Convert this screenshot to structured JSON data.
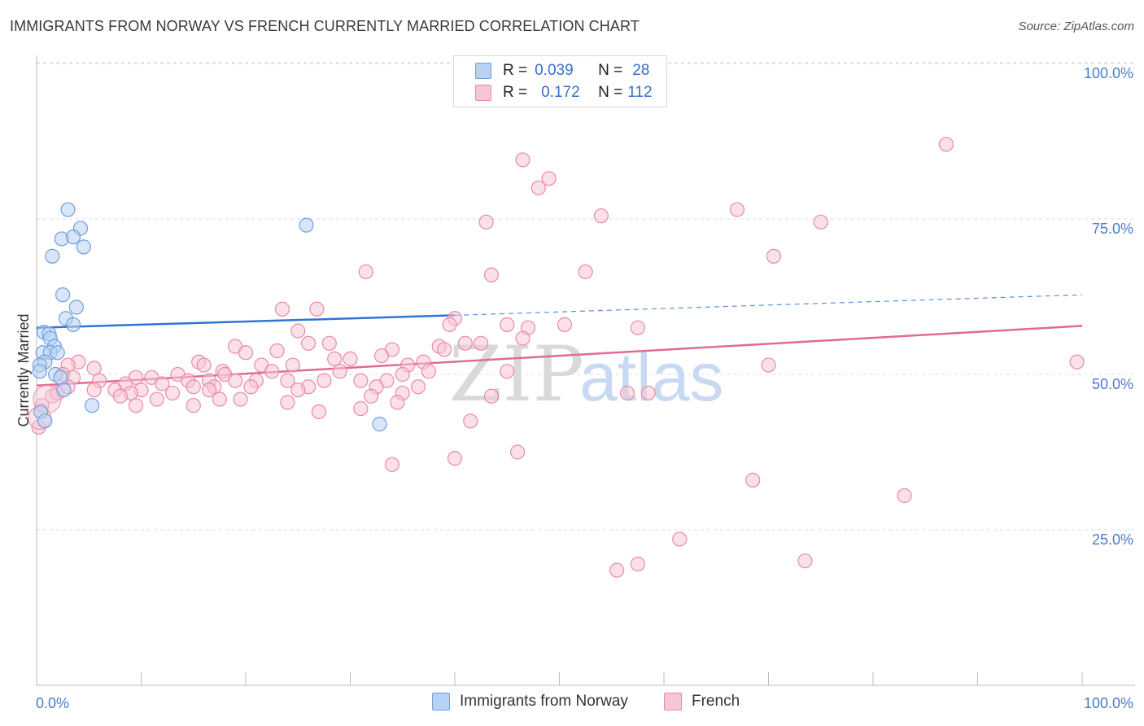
{
  "title": "IMMIGRANTS FROM NORWAY VS FRENCH CURRENTLY MARRIED CORRELATION CHART",
  "source": "Source: ZipAtlas.com",
  "watermark": {
    "zip": "ZIP",
    "atlas": "atlas"
  },
  "legend": {
    "series1": {
      "r_label": "R =",
      "r_value": "0.039",
      "n_label": "N =",
      "n_value": "28"
    },
    "series2": {
      "r_label": "R =",
      "r_value": "0.172",
      "n_label": "N =",
      "n_value": "112"
    }
  },
  "bottom_legend": {
    "series1": "Immigrants from Norway",
    "series2": "French"
  },
  "colors": {
    "blue": "#6f9fe0",
    "blue_fill": "#b9d1f3",
    "blue_line": "#2f75d6",
    "pink": "#e98aa8",
    "pink_fill": "#f7c6d6",
    "pink_line": "#e06a96",
    "axis_text": "#4a7cc9"
  },
  "chart_data": {
    "type": "scatter",
    "title": "IMMIGRANTS FROM NORWAY VS FRENCH CURRENTLY MARRIED CORRELATION CHART",
    "xlabel": "",
    "ylabel": "Currently Married",
    "xlim": [
      0,
      100
    ],
    "ylim": [
      0,
      105
    ],
    "x_tick_labels": {
      "left": "0.0%",
      "right": "100.0%"
    },
    "y_ticks": [
      {
        "value": 25,
        "label": "25.0%"
      },
      {
        "value": 50,
        "label": "50.0%"
      },
      {
        "value": 75,
        "label": "75.0%"
      },
      {
        "value": 100,
        "label": "100.0%"
      }
    ],
    "series": [
      {
        "name": "Immigrants from Norway",
        "color": "blue",
        "r": 0.039,
        "n": 28,
        "trend": {
          "x0": 0,
          "y0": 57.5,
          "x1": 40,
          "y1": 59.5,
          "x_dash_end": 100,
          "y_dash_end": 62.8
        },
        "points": [
          [
            3.0,
            76.5
          ],
          [
            4.2,
            73.5
          ],
          [
            2.4,
            71.8
          ],
          [
            3.5,
            72.1
          ],
          [
            4.5,
            70.5
          ],
          [
            1.5,
            69.0
          ],
          [
            2.5,
            62.8
          ],
          [
            3.8,
            60.8
          ],
          [
            2.8,
            59.0
          ],
          [
            3.5,
            58.0
          ],
          [
            0.7,
            56.8
          ],
          [
            1.2,
            56.5
          ],
          [
            1.3,
            55.8
          ],
          [
            1.7,
            54.5
          ],
          [
            0.6,
            53.5
          ],
          [
            1.3,
            53.5
          ],
          [
            2.0,
            53.5
          ],
          [
            0.8,
            52.0
          ],
          [
            0.3,
            51.5
          ],
          [
            1.8,
            50.0
          ],
          [
            2.3,
            49.5
          ],
          [
            2.6,
            47.5
          ],
          [
            5.3,
            45.0
          ],
          [
            0.4,
            44.0
          ],
          [
            0.8,
            42.5
          ],
          [
            25.8,
            74.0
          ],
          [
            32.8,
            42.0
          ],
          [
            0.3,
            50.5
          ]
        ]
      },
      {
        "name": "French",
        "color": "pink",
        "r": 0.172,
        "n": 112,
        "trend": {
          "x0": 0,
          "y0": 48.2,
          "x1": 100,
          "y1": 57.8
        },
        "points": [
          [
            87.0,
            87.0
          ],
          [
            46.5,
            84.5
          ],
          [
            49.0,
            81.5
          ],
          [
            48.0,
            80.0
          ],
          [
            67.0,
            76.5
          ],
          [
            54.0,
            75.5
          ],
          [
            43.0,
            74.5
          ],
          [
            75.0,
            74.5
          ],
          [
            70.5,
            69.0
          ],
          [
            52.5,
            66.5
          ],
          [
            31.5,
            66.5
          ],
          [
            43.5,
            66.0
          ],
          [
            23.5,
            60.5
          ],
          [
            26.8,
            60.5
          ],
          [
            40.0,
            59.0
          ],
          [
            39.5,
            58.0
          ],
          [
            45.0,
            58.0
          ],
          [
            50.5,
            58.0
          ],
          [
            47.0,
            57.5
          ],
          [
            57.5,
            57.5
          ],
          [
            25.0,
            57.0
          ],
          [
            46.5,
            55.8
          ],
          [
            41.0,
            55.0
          ],
          [
            42.5,
            55.0
          ],
          [
            26.0,
            55.0
          ],
          [
            28.0,
            55.0
          ],
          [
            19.0,
            54.5
          ],
          [
            38.5,
            54.5
          ],
          [
            34.0,
            54.0
          ],
          [
            39.0,
            54.0
          ],
          [
            23.0,
            53.8
          ],
          [
            20.0,
            53.5
          ],
          [
            33.0,
            53.0
          ],
          [
            30.0,
            52.5
          ],
          [
            28.5,
            52.5
          ],
          [
            15.5,
            52.0
          ],
          [
            37.0,
            52.0
          ],
          [
            16.0,
            51.5
          ],
          [
            21.5,
            51.5
          ],
          [
            24.5,
            51.5
          ],
          [
            35.5,
            51.5
          ],
          [
            4.0,
            52.0
          ],
          [
            5.5,
            51.0
          ],
          [
            3.0,
            51.5
          ],
          [
            70.0,
            51.5
          ],
          [
            99.5,
            52.0
          ],
          [
            17.8,
            50.5
          ],
          [
            22.5,
            50.5
          ],
          [
            29.0,
            50.5
          ],
          [
            35.0,
            50.0
          ],
          [
            37.5,
            50.5
          ],
          [
            45.0,
            50.5
          ],
          [
            13.5,
            50.0
          ],
          [
            18.0,
            50.0
          ],
          [
            2.5,
            50.0
          ],
          [
            3.5,
            49.5
          ],
          [
            9.5,
            49.5
          ],
          [
            11.0,
            49.5
          ],
          [
            14.5,
            49.0
          ],
          [
            16.5,
            49.0
          ],
          [
            19.0,
            49.0
          ],
          [
            21.0,
            49.0
          ],
          [
            24.0,
            49.0
          ],
          [
            27.5,
            49.0
          ],
          [
            31.0,
            49.0
          ],
          [
            33.5,
            49.0
          ],
          [
            6.0,
            49.0
          ],
          [
            8.5,
            48.5
          ],
          [
            12.0,
            48.5
          ],
          [
            15.0,
            48.0
          ],
          [
            17.0,
            48.0
          ],
          [
            20.5,
            48.0
          ],
          [
            26.0,
            48.0
          ],
          [
            32.5,
            48.0
          ],
          [
            36.5,
            48.0
          ],
          [
            5.5,
            47.5
          ],
          [
            10.0,
            47.5
          ],
          [
            13.0,
            47.0
          ],
          [
            16.5,
            47.5
          ],
          [
            7.5,
            47.5
          ],
          [
            9.0,
            47.0
          ],
          [
            25.0,
            47.5
          ],
          [
            35.0,
            47.0
          ],
          [
            43.5,
            46.5
          ],
          [
            56.5,
            47.0
          ],
          [
            58.5,
            47.0
          ],
          [
            32.0,
            46.5
          ],
          [
            8.0,
            46.5
          ],
          [
            1.5,
            46.5
          ],
          [
            2.0,
            47.0
          ],
          [
            3.0,
            48.0
          ],
          [
            0.5,
            45.0
          ],
          [
            11.5,
            46.0
          ],
          [
            17.5,
            46.0
          ],
          [
            19.5,
            46.0
          ],
          [
            15.0,
            45.0
          ],
          [
            9.5,
            45.0
          ],
          [
            24.0,
            45.5
          ],
          [
            34.5,
            45.5
          ],
          [
            31.0,
            44.5
          ],
          [
            27.0,
            44.0
          ],
          [
            41.5,
            42.5
          ],
          [
            46.0,
            37.5
          ],
          [
            40.0,
            36.5
          ],
          [
            34.0,
            35.5
          ],
          [
            68.5,
            33.0
          ],
          [
            83.0,
            30.5
          ],
          [
            61.5,
            23.5
          ],
          [
            73.5,
            20.0
          ],
          [
            57.5,
            19.5
          ],
          [
            55.5,
            18.5
          ],
          [
            0.2,
            41.5
          ]
        ]
      }
    ]
  }
}
